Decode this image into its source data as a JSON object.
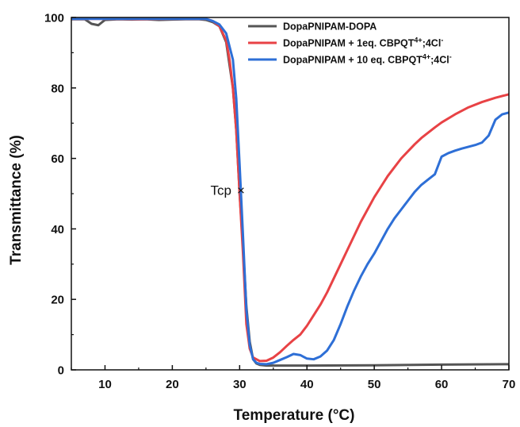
{
  "chart_data": {
    "type": "line",
    "title": "",
    "xlabel": "Temperature (°C)",
    "ylabel": "Transmittance (%)",
    "xlim": [
      5,
      70
    ],
    "ylim": [
      0,
      100
    ],
    "x_ticks": [
      10,
      20,
      30,
      40,
      50,
      60,
      70
    ],
    "y_ticks": [
      0,
      20,
      40,
      60,
      80,
      100
    ],
    "grid": false,
    "legend_position": "top-right",
    "annotations": [
      {
        "label": "Tcp",
        "marker": "×",
        "x": 30.2,
        "y": 51
      }
    ],
    "series": [
      {
        "name": "DopaPNIPAM-DOPA",
        "name_parts": [
          "DopaPNIPAM-DOPA"
        ],
        "color": "#555555",
        "points": [
          [
            5,
            99.5
          ],
          [
            7,
            99.5
          ],
          [
            8,
            98.2
          ],
          [
            9,
            97.8
          ],
          [
            10,
            99.3
          ],
          [
            12,
            99.5
          ],
          [
            14,
            99.4
          ],
          [
            16,
            99.5
          ],
          [
            18,
            99.3
          ],
          [
            20,
            99.4
          ],
          [
            22,
            99.5
          ],
          [
            24,
            99.5
          ],
          [
            25,
            99.3
          ],
          [
            26,
            98.7
          ],
          [
            27,
            97.5
          ],
          [
            28,
            93
          ],
          [
            29,
            80
          ],
          [
            29.5,
            68
          ],
          [
            30,
            50
          ],
          [
            30.5,
            35
          ],
          [
            31,
            18
          ],
          [
            31.5,
            8
          ],
          [
            32,
            3
          ],
          [
            32.5,
            1.8
          ],
          [
            33,
            1.4
          ],
          [
            34,
            1.2
          ],
          [
            35,
            1.2
          ],
          [
            40,
            1.2
          ],
          [
            50,
            1.3
          ],
          [
            60,
            1.5
          ],
          [
            70,
            1.6
          ]
        ]
      },
      {
        "name": "DopaPNIPAM + 1eq. CBPQT4+;4Cl-",
        "name_parts": [
          "DopaPNIPAM + 1eq. CBPQT",
          "4+",
          ";4Cl",
          "-"
        ],
        "color": "#e84245",
        "points": [
          [
            5,
            99.6
          ],
          [
            10,
            99.6
          ],
          [
            15,
            99.5
          ],
          [
            20,
            99.6
          ],
          [
            25,
            99.6
          ],
          [
            26,
            99
          ],
          [
            27,
            97.5
          ],
          [
            28,
            93.5
          ],
          [
            28.5,
            88
          ],
          [
            29,
            80
          ],
          [
            29.5,
            68
          ],
          [
            30,
            50
          ],
          [
            30.5,
            33
          ],
          [
            31,
            13
          ],
          [
            31.5,
            6
          ],
          [
            32,
            3.5
          ],
          [
            33,
            2.5
          ],
          [
            34,
            2.6
          ],
          [
            35,
            3.5
          ],
          [
            36,
            5
          ],
          [
            37,
            6.8
          ],
          [
            38,
            8.5
          ],
          [
            39,
            10
          ],
          [
            40,
            12.5
          ],
          [
            41,
            15.5
          ],
          [
            42,
            18.5
          ],
          [
            43,
            22
          ],
          [
            44,
            26
          ],
          [
            45,
            30
          ],
          [
            46,
            34
          ],
          [
            47,
            38
          ],
          [
            48,
            42
          ],
          [
            49,
            45.5
          ],
          [
            50,
            49
          ],
          [
            51,
            52
          ],
          [
            52,
            55
          ],
          [
            53,
            57.5
          ],
          [
            54,
            60
          ],
          [
            55,
            62
          ],
          [
            56,
            64
          ],
          [
            57,
            65.8
          ],
          [
            58,
            67.3
          ],
          [
            59,
            68.8
          ],
          [
            60,
            70.2
          ],
          [
            62,
            72.5
          ],
          [
            64,
            74.5
          ],
          [
            66,
            76
          ],
          [
            68,
            77.2
          ],
          [
            70,
            78.2
          ]
        ]
      },
      {
        "name": "DopaPNIPAM + 10 eq. CBPQT4+;4Cl-",
        "name_parts": [
          "DopaPNIPAM + 10 eq. CBPQT",
          "4+",
          ";4Cl",
          "-"
        ],
        "color": "#2e6fd6",
        "points": [
          [
            5,
            99.6
          ],
          [
            10,
            99.6
          ],
          [
            15,
            99.6
          ],
          [
            20,
            99.6
          ],
          [
            25,
            99.6
          ],
          [
            26,
            99
          ],
          [
            27,
            98
          ],
          [
            28,
            95.5
          ],
          [
            29,
            88
          ],
          [
            29.5,
            77
          ],
          [
            30,
            58
          ],
          [
            30.5,
            38
          ],
          [
            31,
            17
          ],
          [
            31.5,
            7
          ],
          [
            32,
            3
          ],
          [
            32.5,
            2
          ],
          [
            33,
            1.7
          ],
          [
            34,
            1.6
          ],
          [
            35,
            2
          ],
          [
            36,
            2.8
          ],
          [
            37,
            3.6
          ],
          [
            38,
            4.5
          ],
          [
            39,
            4.2
          ],
          [
            40,
            3.2
          ],
          [
            41,
            3
          ],
          [
            42,
            3.8
          ],
          [
            43,
            5.5
          ],
          [
            44,
            8.5
          ],
          [
            45,
            13
          ],
          [
            46,
            18
          ],
          [
            47,
            22.5
          ],
          [
            48,
            26.5
          ],
          [
            49,
            30
          ],
          [
            50,
            33
          ],
          [
            51,
            36.5
          ],
          [
            52,
            40
          ],
          [
            53,
            43
          ],
          [
            54,
            45.5
          ],
          [
            55,
            48
          ],
          [
            56,
            50.5
          ],
          [
            57,
            52.5
          ],
          [
            58,
            54
          ],
          [
            59,
            55.5
          ],
          [
            60,
            60.5
          ],
          [
            61,
            61.5
          ],
          [
            62,
            62.2
          ],
          [
            63,
            62.8
          ],
          [
            64,
            63.3
          ],
          [
            65,
            63.8
          ],
          [
            66,
            64.5
          ],
          [
            67,
            66.5
          ],
          [
            68,
            71
          ],
          [
            69,
            72.5
          ],
          [
            70,
            73
          ]
        ]
      }
    ]
  }
}
